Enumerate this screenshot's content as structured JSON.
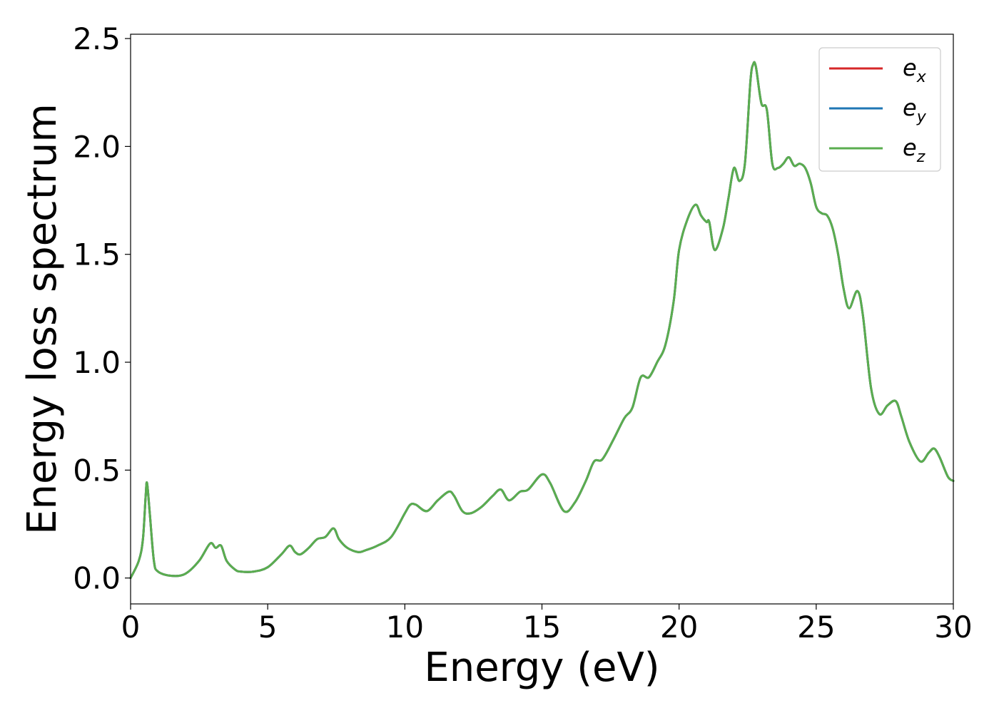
{
  "chart_data": {
    "type": "line",
    "xlabel": "Energy (eV)",
    "ylabel": "Energy loss spectrum",
    "xlim": [
      0,
      30
    ],
    "ylim": [
      -0.12,
      2.52
    ],
    "xticks": [
      0,
      5,
      10,
      15,
      20,
      25,
      30
    ],
    "xtick_labels": [
      "0",
      "5",
      "10",
      "15",
      "20",
      "25",
      "30"
    ],
    "yticks": [
      0.0,
      0.5,
      1.0,
      1.5,
      2.0,
      2.5
    ],
    "ytick_labels": [
      "0.0",
      "0.5",
      "1.0",
      "1.5",
      "2.0",
      "2.5"
    ],
    "grid": false,
    "legend_position": "top-right",
    "x": [
      0,
      0.3,
      0.45,
      0.55,
      0.6,
      0.7,
      0.85,
      1.0,
      1.5,
      2.0,
      2.5,
      2.9,
      3.1,
      3.3,
      3.5,
      3.8,
      4.0,
      4.5,
      5.0,
      5.5,
      5.8,
      6.0,
      6.2,
      6.5,
      6.8,
      7.1,
      7.4,
      7.6,
      7.9,
      8.3,
      8.6,
      9.0,
      9.5,
      10.0,
      10.2,
      10.4,
      10.8,
      11.2,
      11.6,
      11.8,
      12.1,
      12.4,
      12.8,
      13.2,
      13.5,
      13.8,
      14.2,
      14.5,
      15.0,
      15.3,
      15.8,
      16.2,
      16.6,
      16.9,
      17.2,
      17.6,
      18.0,
      18.3,
      18.6,
      18.9,
      19.2,
      19.5,
      19.8,
      20.0,
      20.3,
      20.6,
      20.8,
      21.0,
      21.1,
      21.3,
      21.6,
      21.8,
      22.0,
      22.2,
      22.4,
      22.6,
      22.7,
      22.8,
      23.0,
      23.2,
      23.4,
      23.6,
      23.8,
      24.0,
      24.2,
      24.4,
      24.6,
      24.8,
      25.0,
      25.2,
      25.4,
      25.6,
      25.8,
      26.0,
      26.2,
      26.5,
      26.7,
      27.0,
      27.3,
      27.6,
      27.9,
      28.1,
      28.4,
      28.8,
      29.1,
      29.3,
      29.5,
      29.8,
      30.0
    ],
    "series": [
      {
        "name": "e_x",
        "label_base": "e",
        "label_sub": "x",
        "color": "#d62728",
        "values": [
          0,
          0.08,
          0.18,
          0.38,
          0.44,
          0.3,
          0.08,
          0.03,
          0.01,
          0.02,
          0.08,
          0.16,
          0.14,
          0.15,
          0.08,
          0.04,
          0.03,
          0.03,
          0.05,
          0.11,
          0.15,
          0.12,
          0.11,
          0.14,
          0.18,
          0.19,
          0.23,
          0.18,
          0.14,
          0.12,
          0.13,
          0.15,
          0.19,
          0.3,
          0.34,
          0.34,
          0.31,
          0.36,
          0.4,
          0.38,
          0.31,
          0.3,
          0.33,
          0.38,
          0.41,
          0.36,
          0.4,
          0.41,
          0.48,
          0.44,
          0.31,
          0.35,
          0.45,
          0.54,
          0.55,
          0.64,
          0.74,
          0.79,
          0.93,
          0.93,
          1.0,
          1.08,
          1.28,
          1.52,
          1.66,
          1.73,
          1.68,
          1.65,
          1.65,
          1.52,
          1.62,
          1.76,
          1.9,
          1.84,
          1.92,
          2.3,
          2.38,
          2.37,
          2.2,
          2.17,
          1.92,
          1.9,
          1.92,
          1.95,
          1.91,
          1.92,
          1.9,
          1.83,
          1.72,
          1.69,
          1.68,
          1.62,
          1.5,
          1.34,
          1.25,
          1.33,
          1.22,
          0.88,
          0.76,
          0.8,
          0.82,
          0.75,
          0.63,
          0.54,
          0.58,
          0.6,
          0.56,
          0.47,
          0.45
        ]
      },
      {
        "name": "e_y",
        "label_base": "e",
        "label_sub": "y",
        "color": "#1f77b4",
        "values": [
          0,
          0.08,
          0.18,
          0.38,
          0.44,
          0.3,
          0.08,
          0.03,
          0.01,
          0.02,
          0.08,
          0.16,
          0.14,
          0.15,
          0.08,
          0.04,
          0.03,
          0.03,
          0.05,
          0.11,
          0.15,
          0.12,
          0.11,
          0.14,
          0.18,
          0.19,
          0.23,
          0.18,
          0.14,
          0.12,
          0.13,
          0.15,
          0.19,
          0.3,
          0.34,
          0.34,
          0.31,
          0.36,
          0.4,
          0.38,
          0.31,
          0.3,
          0.33,
          0.38,
          0.41,
          0.36,
          0.4,
          0.41,
          0.48,
          0.44,
          0.31,
          0.35,
          0.45,
          0.54,
          0.55,
          0.64,
          0.74,
          0.79,
          0.93,
          0.93,
          1.0,
          1.08,
          1.28,
          1.52,
          1.66,
          1.73,
          1.68,
          1.65,
          1.65,
          1.52,
          1.62,
          1.76,
          1.9,
          1.84,
          1.92,
          2.3,
          2.38,
          2.37,
          2.2,
          2.17,
          1.92,
          1.9,
          1.92,
          1.95,
          1.91,
          1.92,
          1.9,
          1.83,
          1.72,
          1.69,
          1.68,
          1.62,
          1.5,
          1.34,
          1.25,
          1.33,
          1.22,
          0.88,
          0.76,
          0.8,
          0.82,
          0.75,
          0.63,
          0.54,
          0.58,
          0.6,
          0.56,
          0.47,
          0.45
        ]
      },
      {
        "name": "e_z",
        "label_base": "e",
        "label_sub": "z",
        "color": "#5aad4f",
        "values": [
          0,
          0.08,
          0.18,
          0.38,
          0.44,
          0.3,
          0.08,
          0.03,
          0.01,
          0.02,
          0.08,
          0.16,
          0.14,
          0.15,
          0.08,
          0.04,
          0.03,
          0.03,
          0.05,
          0.11,
          0.15,
          0.12,
          0.11,
          0.14,
          0.18,
          0.19,
          0.23,
          0.18,
          0.14,
          0.12,
          0.13,
          0.15,
          0.19,
          0.3,
          0.34,
          0.34,
          0.31,
          0.36,
          0.4,
          0.38,
          0.31,
          0.3,
          0.33,
          0.38,
          0.41,
          0.36,
          0.4,
          0.41,
          0.48,
          0.44,
          0.31,
          0.35,
          0.45,
          0.54,
          0.55,
          0.64,
          0.74,
          0.79,
          0.93,
          0.93,
          1.0,
          1.08,
          1.28,
          1.52,
          1.66,
          1.73,
          1.68,
          1.65,
          1.65,
          1.52,
          1.62,
          1.76,
          1.9,
          1.84,
          1.92,
          2.3,
          2.38,
          2.37,
          2.2,
          2.17,
          1.92,
          1.9,
          1.92,
          1.95,
          1.91,
          1.92,
          1.9,
          1.83,
          1.72,
          1.69,
          1.68,
          1.62,
          1.5,
          1.34,
          1.25,
          1.33,
          1.22,
          0.88,
          0.76,
          0.8,
          0.82,
          0.75,
          0.63,
          0.54,
          0.58,
          0.6,
          0.56,
          0.47,
          0.45
        ]
      }
    ]
  }
}
